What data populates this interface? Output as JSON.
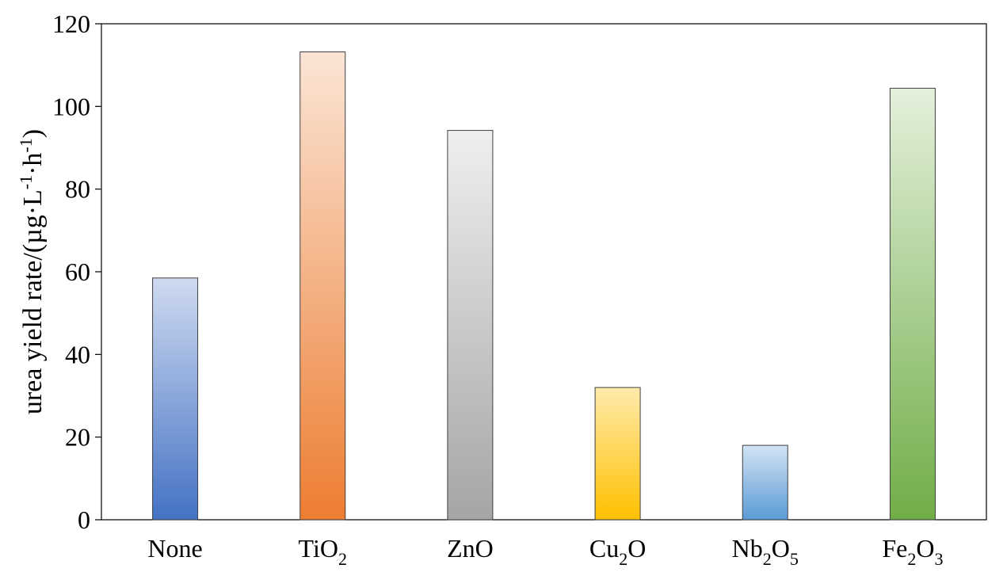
{
  "chart_data": {
    "type": "bar",
    "title": "",
    "xlabel": "",
    "ylabel": {
      "main": "urea yield rate/(µg·L",
      "sup1": "-1",
      "mid": "·h",
      "sup2": "-1",
      "end": ")"
    },
    "ylim": [
      0,
      120
    ],
    "yticks": [
      0,
      20,
      40,
      60,
      80,
      100,
      120
    ],
    "grid": false,
    "categories": [
      {
        "label": [
          {
            "t": "None"
          }
        ]
      },
      {
        "label": [
          {
            "t": "TiO"
          },
          {
            "t": "2",
            "sub": true
          }
        ]
      },
      {
        "label": [
          {
            "t": "ZnO"
          }
        ]
      },
      {
        "label": [
          {
            "t": "Cu"
          },
          {
            "t": "2",
            "sub": true
          },
          {
            "t": "O"
          }
        ]
      },
      {
        "label": [
          {
            "t": "Nb"
          },
          {
            "t": "2",
            "sub": true
          },
          {
            "t": "O"
          },
          {
            "t": "5",
            "sub": true
          }
        ]
      },
      {
        "label": [
          {
            "t": "Fe"
          },
          {
            "t": "2",
            "sub": true
          },
          {
            "t": "O"
          },
          {
            "t": "3",
            "sub": true
          }
        ]
      }
    ],
    "values": [
      58.5,
      113.2,
      94.2,
      32.0,
      18.0,
      104.4
    ],
    "bar_gradients": [
      {
        "top": "#cfdaf0",
        "bottom": "#4472c4"
      },
      {
        "top": "#fbe5d6",
        "bottom": "#ed7d31"
      },
      {
        "top": "#efefef",
        "bottom": "#a5a5a5"
      },
      {
        "top": "#ffeaab",
        "bottom": "#ffc000"
      },
      {
        "top": "#d2e3f4",
        "bottom": "#5b9bd5"
      },
      {
        "top": "#e4f0dc",
        "bottom": "#70ad47"
      }
    ]
  }
}
